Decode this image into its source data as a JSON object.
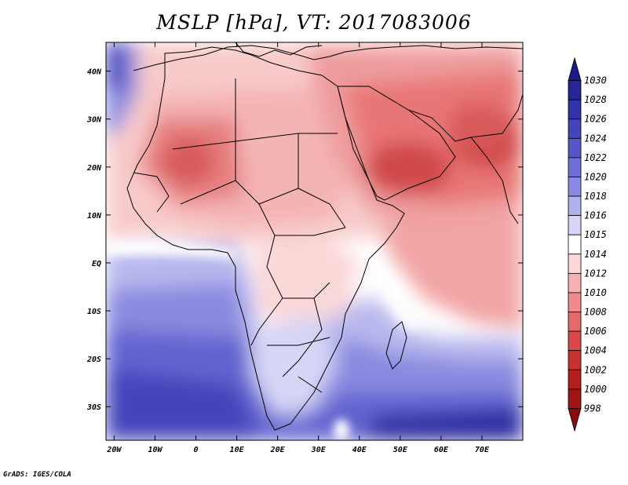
{
  "title": "MSLP [hPa], VT: 2017083006",
  "footer": "GrADS: IGES/COLA",
  "x_ticks": [
    "20W",
    "10W",
    "0",
    "10E",
    "20E",
    "30E",
    "40E",
    "50E",
    "60E",
    "70E"
  ],
  "y_ticks": [
    "40N",
    "30N",
    "20N",
    "10N",
    "EQ",
    "10S",
    "20S",
    "30S"
  ],
  "colorbar": {
    "labels": [
      "1030",
      "1028",
      "1026",
      "1024",
      "1022",
      "1020",
      "1018",
      "1016",
      "1015",
      "1014",
      "1012",
      "1010",
      "1008",
      "1006",
      "1004",
      "1002",
      "1000",
      "998"
    ],
    "colors": [
      "#1a1a8c",
      "#262699",
      "#3333aa",
      "#4444bb",
      "#5656c8",
      "#6e6ed4",
      "#8a8ae0",
      "#b0b0ec",
      "#d6d6f6",
      "#ffffff",
      "#fbd8d8",
      "#f6b2b2",
      "#ee8c8c",
      "#e46a6a",
      "#d84a4a",
      "#c83232",
      "#b41e1e",
      "#a01414",
      "#8c0a0a"
    ]
  },
  "map": {
    "lon_range": [
      -22,
      80
    ],
    "lat_range": [
      -37,
      46
    ],
    "variable": "MSLP",
    "units": "hPa",
    "valid_time": "2017083006"
  }
}
